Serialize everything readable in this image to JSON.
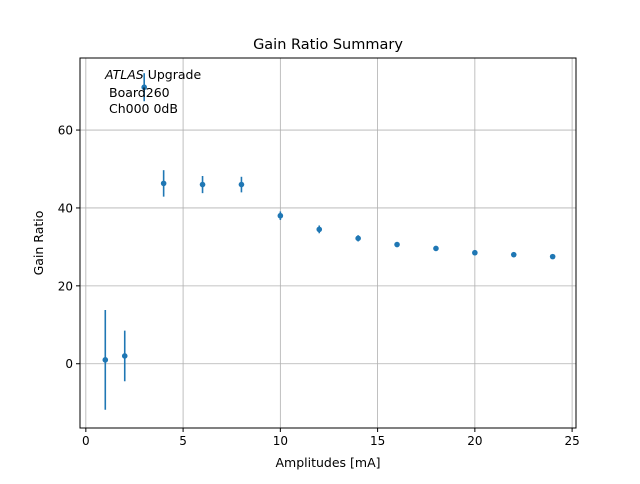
{
  "chart_data": {
    "type": "scatter",
    "title": "Gain Ratio Summary",
    "xlabel": "Amplitudes [mA]",
    "ylabel": "Gain Ratio",
    "xlim": [
      -0.3,
      25.2
    ],
    "ylim": [
      -16.5,
      78.5
    ],
    "xticks": [
      0,
      5,
      10,
      15,
      20,
      25
    ],
    "yticks": [
      0,
      20,
      40,
      60
    ],
    "grid": true,
    "color": "#1f77b4",
    "annotation": {
      "italic": "ATLAS",
      "rest": " Upgrade",
      "line2": "Board260",
      "line3": "Ch000 0dB"
    },
    "x": [
      1,
      2,
      3,
      4,
      6,
      8,
      10,
      12,
      14,
      16,
      18,
      20,
      22,
      24
    ],
    "y": [
      1.0,
      2.0,
      71.0,
      46.3,
      46.0,
      46.0,
      38.0,
      34.5,
      32.2,
      30.6,
      29.6,
      28.5,
      28.0,
      27.5
    ],
    "yerr": [
      12.8,
      6.5,
      3.6,
      3.4,
      2.2,
      2.0,
      1.1,
      1.0,
      0.8,
      0.5,
      0.6,
      0.4,
      0.4,
      0.3
    ]
  }
}
